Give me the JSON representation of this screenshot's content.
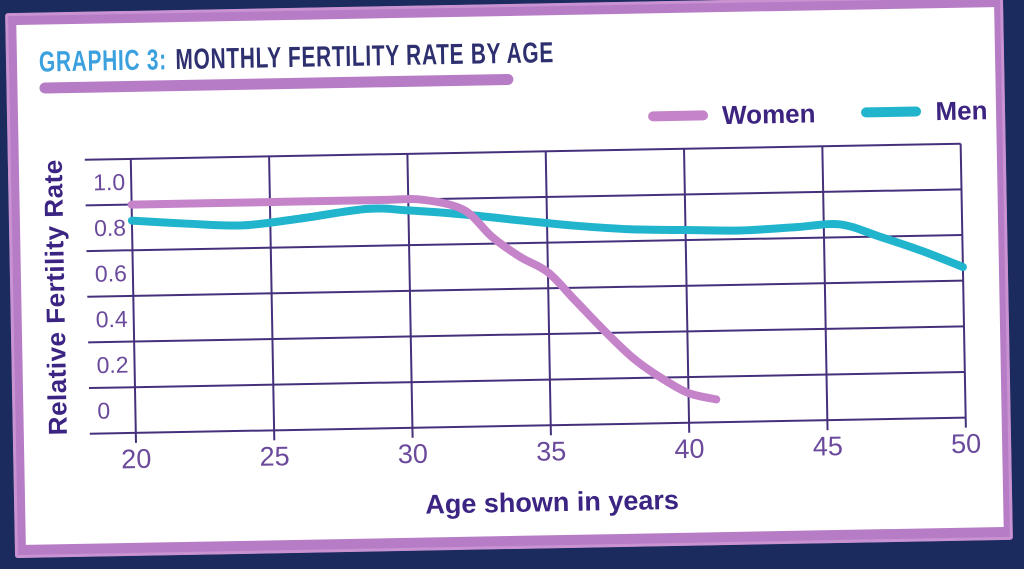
{
  "header": {
    "kicker": "GRAPHIC 3:",
    "title": "MONTHLY FERTILITY RATE BY AGE"
  },
  "chart_data": {
    "type": "line",
    "title": "Monthly Fertility Rate by Age",
    "xlabel": "Age shown in years",
    "ylabel": "Relative Fertility Rate",
    "xlim": [
      20,
      50
    ],
    "ylim": [
      -0.1,
      1.1
    ],
    "grid": true,
    "legend_position": "top-right",
    "x_ticks": [
      20,
      25,
      30,
      35,
      40,
      45,
      50
    ],
    "y_tick_labels": [
      "1.0",
      "0.8",
      "0.6",
      "0.4",
      "0.2",
      "0"
    ],
    "y_tick_values": [
      1.0,
      0.8,
      0.6,
      0.4,
      0.2,
      0
    ],
    "series": [
      {
        "name": "Women",
        "color": "#c584ca",
        "points": [
          [
            20,
            0.9
          ],
          [
            25,
            0.9
          ],
          [
            29,
            0.9
          ],
          [
            30.5,
            0.898
          ],
          [
            32,
            0.85
          ],
          [
            33,
            0.73
          ],
          [
            34,
            0.64
          ],
          [
            35,
            0.57
          ],
          [
            36,
            0.44
          ],
          [
            37,
            0.31
          ],
          [
            38,
            0.19
          ],
          [
            39,
            0.1
          ],
          [
            40,
            0.03
          ],
          [
            41,
            0.0
          ]
        ]
      },
      {
        "name": "Men",
        "color": "#21b5cd",
        "points": [
          [
            20,
            0.83
          ],
          [
            22,
            0.812
          ],
          [
            24,
            0.8
          ],
          [
            26,
            0.824
          ],
          [
            28.5,
            0.862
          ],
          [
            30,
            0.852
          ],
          [
            32,
            0.83
          ],
          [
            34,
            0.8
          ],
          [
            36,
            0.772
          ],
          [
            38,
            0.752
          ],
          [
            40,
            0.744
          ],
          [
            42,
            0.738
          ],
          [
            44,
            0.748
          ],
          [
            45.6,
            0.756
          ],
          [
            47,
            0.7
          ],
          [
            48.5,
            0.635
          ],
          [
            50,
            0.56
          ]
        ]
      }
    ]
  },
  "colors": {
    "background_navy": "#1b2b5e",
    "frame_purple": "#b77cc6",
    "card_white": "#ffffff",
    "kicker_blue": "#3ba1de",
    "title_navy": "#2d2f6e",
    "grid_indigo": "#45307c",
    "tick_label_purple": "#6b4a9c",
    "axis_title_indigo": "#3b2482",
    "women_line": "#c584ca",
    "men_line": "#21b5cd"
  }
}
